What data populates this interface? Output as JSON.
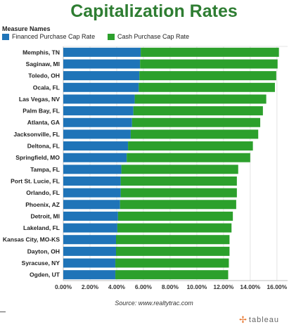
{
  "title": "Capitalization Rates",
  "legend": {
    "title": "Measure Names",
    "items": [
      {
        "label": "Financed Purchase Cap Rate",
        "color": "#1f74b8"
      },
      {
        "label": "Cash Purchase Cap Rate",
        "color": "#2ca02c"
      }
    ]
  },
  "source": "Source: www.realtytrac.com",
  "brand": "tableau",
  "chart_data": {
    "type": "bar",
    "orientation": "horizontal",
    "stacked": true,
    "categories": [
      "Memphis, TN",
      "Saginaw, MI",
      "Toledo, OH",
      "Ocala, FL",
      "Las Vegas, NV",
      "Palm Bay, FL",
      "Atlanta, GA",
      "Jacksonville, FL",
      "Deltona, FL",
      "Springfield, MO",
      "Tampa, FL",
      "Port St. Lucie, FL",
      "Orlando, FL",
      "Phoenix, AZ",
      "Detroit, MI",
      "Lakeland, FL",
      "Kansas City, MO-KS",
      "Dayton, OH",
      "Syracuse, NY",
      "Ogden, UT"
    ],
    "series": [
      {
        "name": "Financed Purchase Cap Rate",
        "color": "#1f74b8",
        "values": [
          5.8,
          5.75,
          5.7,
          5.65,
          5.35,
          5.25,
          5.15,
          5.05,
          4.85,
          4.75,
          4.35,
          4.3,
          4.3,
          4.25,
          4.1,
          4.05,
          3.95,
          3.95,
          3.9,
          3.9
        ]
      },
      {
        "name": "Cash Purchase Cap Rate",
        "color": "#2ca02c",
        "values": [
          10.35,
          10.3,
          10.25,
          10.2,
          9.85,
          9.7,
          9.6,
          9.55,
          9.35,
          9.25,
          8.75,
          8.7,
          8.7,
          8.7,
          8.6,
          8.55,
          8.5,
          8.5,
          8.5,
          8.45
        ]
      }
    ],
    "xlim": [
      0,
      16.8
    ],
    "xticks": [
      "0.00%",
      "2.00%",
      "4.00%",
      "6.00%",
      "8.00%",
      "10.00%",
      "12.00%",
      "14.00%",
      "16.00%"
    ],
    "legend_position": "top-left"
  }
}
